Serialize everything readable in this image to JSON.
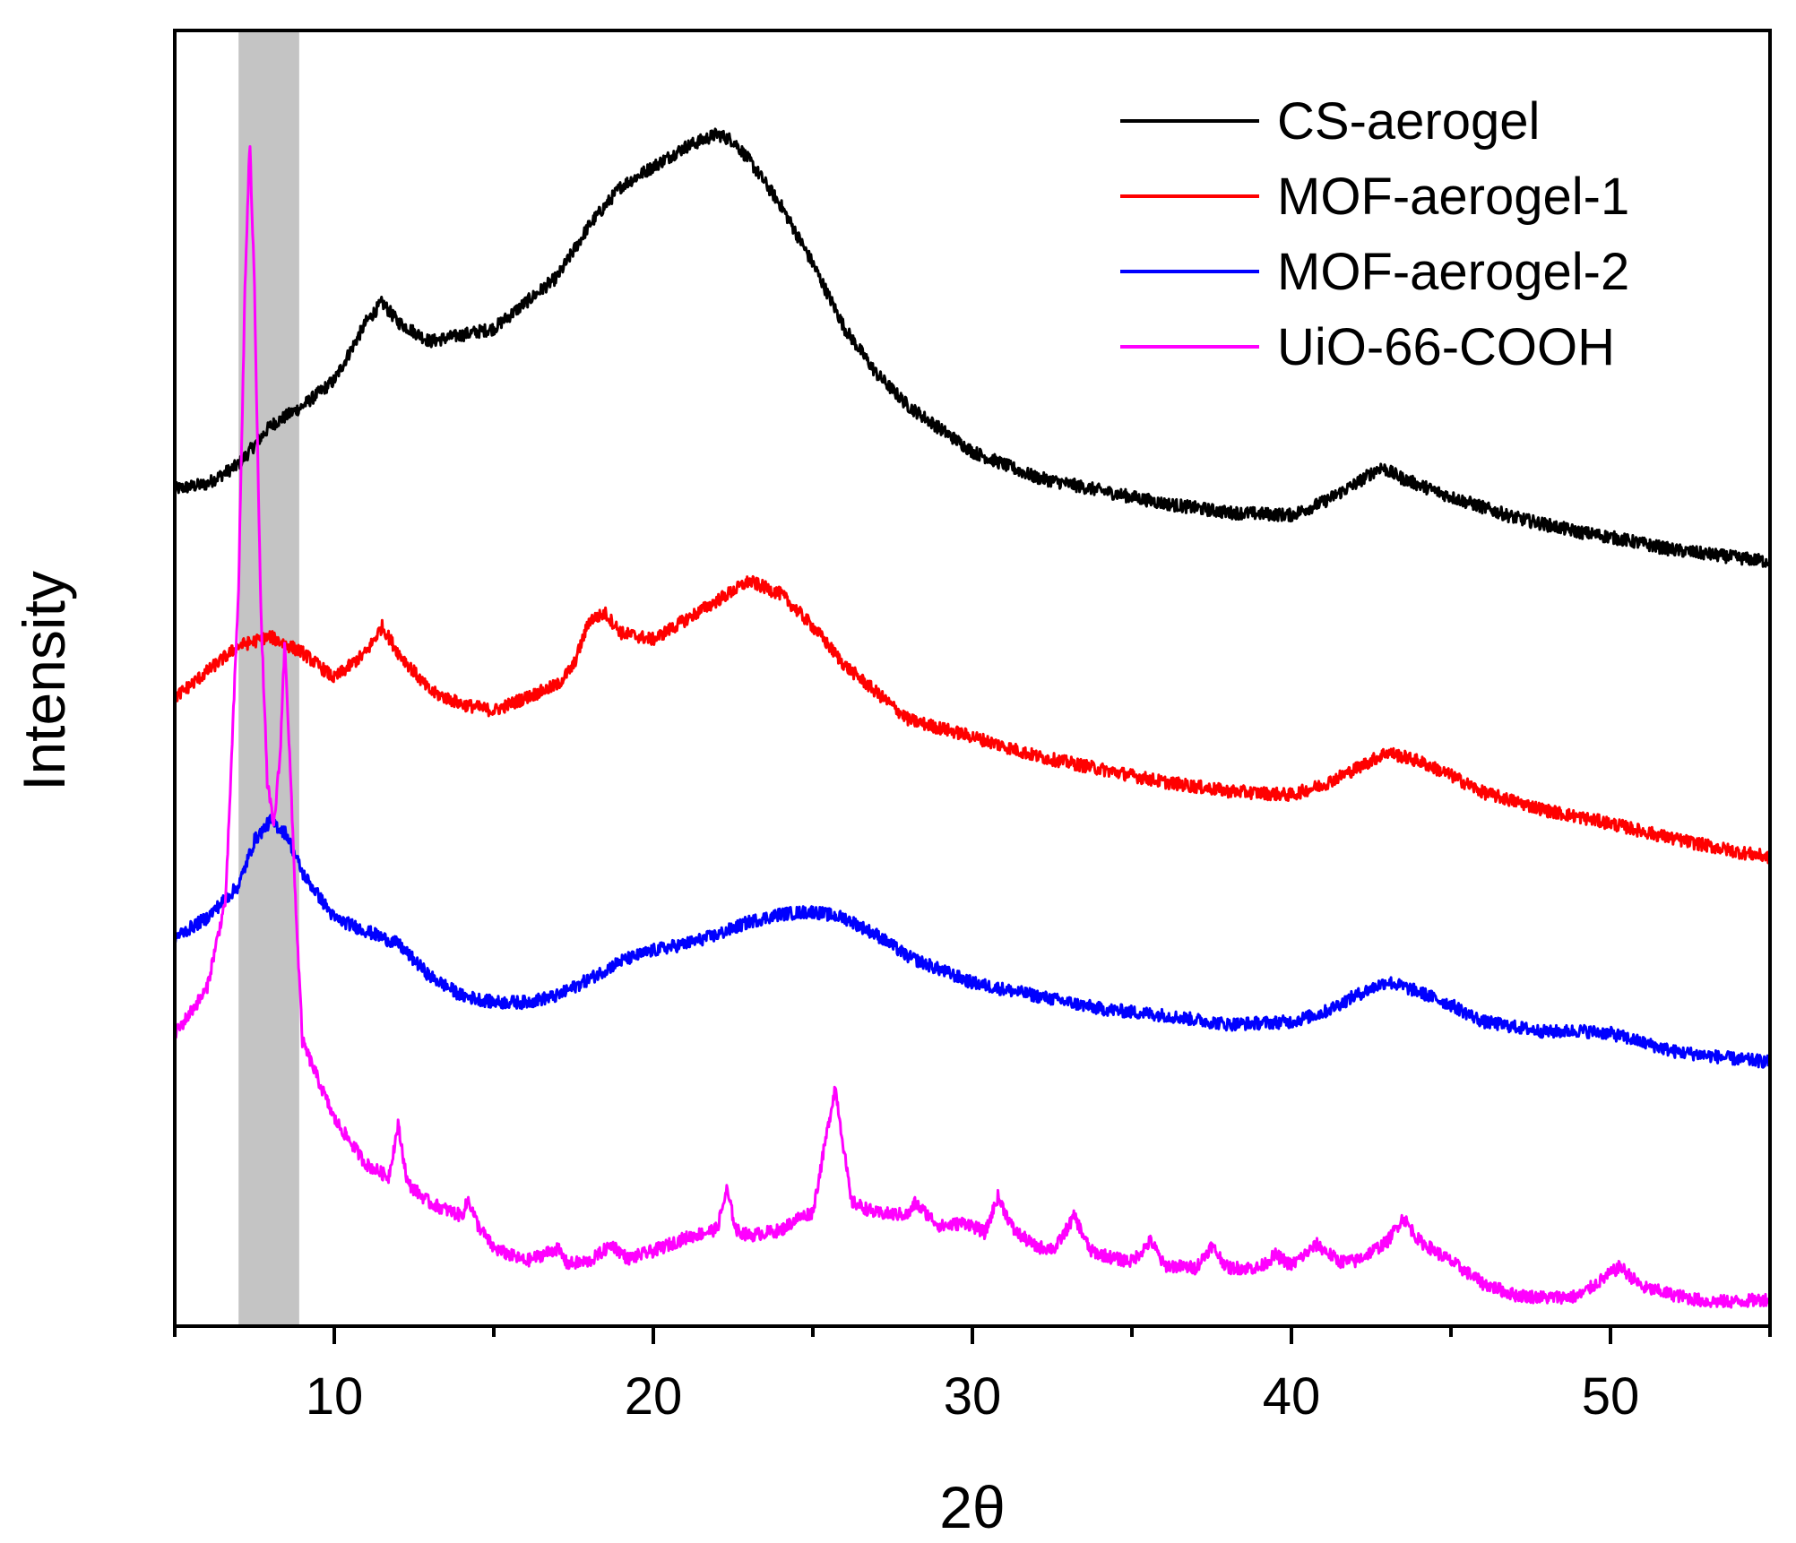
{
  "chart_data": {
    "type": "line",
    "title": "",
    "xlabel": "2θ",
    "ylabel": "Intensity",
    "xlim": [
      5,
      55
    ],
    "xticks": [
      10,
      20,
      30,
      40,
      50
    ],
    "xticks_minor": [
      5,
      15,
      25,
      35,
      45,
      55
    ],
    "y_ticks_shown": false,
    "ylim": [
      0,
      100
    ],
    "grid": false,
    "legend_position": "top-right",
    "highlight_band": {
      "x_range": [
        7.0,
        8.9
      ],
      "color": "#c4c4c4"
    },
    "series": [
      {
        "name": "CS-aerogel",
        "color": "#000000",
        "points": [
          [
            5,
            64.6
          ],
          [
            6,
            65
          ],
          [
            7,
            66.5
          ],
          [
            8,
            69.5
          ],
          [
            9,
            71
          ],
          [
            10,
            73
          ],
          [
            11,
            77.5
          ],
          [
            11.5,
            79
          ],
          [
            12,
            77.5
          ],
          [
            13,
            76
          ],
          [
            14,
            76.5
          ],
          [
            15,
            77
          ],
          [
            16,
            79
          ],
          [
            17,
            81
          ],
          [
            18,
            85
          ],
          [
            19,
            88
          ],
          [
            20,
            89.5
          ],
          [
            21,
            91
          ],
          [
            22,
            92
          ],
          [
            22.5,
            91.5
          ],
          [
            23,
            90
          ],
          [
            24,
            86.5
          ],
          [
            25,
            82
          ],
          [
            26,
            77
          ],
          [
            27,
            73.5
          ],
          [
            28,
            71
          ],
          [
            30,
            67.5
          ],
          [
            32,
            65.5
          ],
          [
            34,
            64.5
          ],
          [
            36,
            63.5
          ],
          [
            38,
            62.8
          ],
          [
            40,
            62.6
          ],
          [
            41,
            63.6
          ],
          [
            42,
            65
          ],
          [
            42.8,
            66.3
          ],
          [
            43.5,
            65.4
          ],
          [
            45,
            64
          ],
          [
            47,
            62.4
          ],
          [
            49,
            61.3
          ],
          [
            50,
            60.9
          ],
          [
            52,
            59.9
          ],
          [
            54,
            59.3
          ],
          [
            55,
            59
          ]
        ]
      },
      {
        "name": "MOF-aerogel-1",
        "color": "#ff0000",
        "points": [
          [
            5,
            48.5
          ],
          [
            6,
            50.5
          ],
          [
            7,
            52.5
          ],
          [
            8,
            53.2
          ],
          [
            9,
            52
          ],
          [
            10,
            50
          ],
          [
            11,
            52
          ],
          [
            11.5,
            54
          ],
          [
            12,
            52
          ],
          [
            13,
            49
          ],
          [
            14,
            48
          ],
          [
            15,
            47.5
          ],
          [
            16,
            48.5
          ],
          [
            17,
            49.5
          ],
          [
            17.5,
            51
          ],
          [
            18,
            54.5
          ],
          [
            18.5,
            55
          ],
          [
            19,
            53.5
          ],
          [
            20,
            53
          ],
          [
            21,
            54.5
          ],
          [
            22,
            56
          ],
          [
            23,
            57.5
          ],
          [
            24,
            56.5
          ],
          [
            25,
            54
          ],
          [
            26,
            51
          ],
          [
            28,
            46.8
          ],
          [
            30,
            45.5
          ],
          [
            32,
            44
          ],
          [
            34,
            43
          ],
          [
            36,
            42
          ],
          [
            38,
            41.3
          ],
          [
            40,
            41
          ],
          [
            41,
            41.8
          ],
          [
            42,
            43
          ],
          [
            43,
            44.3
          ],
          [
            44,
            43.6
          ],
          [
            45,
            42.5
          ],
          [
            46,
            41.2
          ],
          [
            48,
            39.8
          ],
          [
            50,
            38.8
          ],
          [
            52,
            37.6
          ],
          [
            54,
            36.6
          ],
          [
            55,
            36.2
          ]
        ]
      },
      {
        "name": "MOF-aerogel-2",
        "color": "#0000ff",
        "points": [
          [
            5,
            30
          ],
          [
            6,
            31.5
          ],
          [
            7,
            34
          ],
          [
            7.5,
            37.5
          ],
          [
            8,
            39
          ],
          [
            8.5,
            38
          ],
          [
            9,
            35
          ],
          [
            10,
            31.5
          ],
          [
            11,
            30.5
          ],
          [
            12,
            29.5
          ],
          [
            13,
            27
          ],
          [
            14,
            25.5
          ],
          [
            15,
            25
          ],
          [
            16,
            25
          ],
          [
            17,
            25.5
          ],
          [
            18,
            26.8
          ],
          [
            19,
            28.2
          ],
          [
            20,
            29
          ],
          [
            21,
            29.5
          ],
          [
            22,
            30.2
          ],
          [
            23,
            31.2
          ],
          [
            24,
            31.8
          ],
          [
            25,
            32
          ],
          [
            26,
            31.5
          ],
          [
            27,
            30.2
          ],
          [
            28,
            28.5
          ],
          [
            30,
            26.5
          ],
          [
            32,
            25.5
          ],
          [
            34,
            24.5
          ],
          [
            36,
            24
          ],
          [
            38,
            23.3
          ],
          [
            40,
            23.5
          ],
          [
            41,
            24.2
          ],
          [
            42,
            25.5
          ],
          [
            43,
            26.6
          ],
          [
            44,
            25.8
          ],
          [
            45,
            24.8
          ],
          [
            46,
            23.5
          ],
          [
            48,
            22.7
          ],
          [
            49,
            22.8
          ],
          [
            50,
            22.6
          ],
          [
            52,
            21.2
          ],
          [
            54,
            20.6
          ],
          [
            55,
            20.4
          ]
        ]
      },
      {
        "name": "UiO-66-COOH",
        "color": "#ff00ff",
        "points": [
          [
            5,
            22.5
          ],
          [
            6,
            26
          ],
          [
            6.6,
            33
          ],
          [
            7,
            57
          ],
          [
            7.2,
            80
          ],
          [
            7.35,
            91.5
          ],
          [
            7.5,
            80
          ],
          [
            7.7,
            55
          ],
          [
            7.9,
            42
          ],
          [
            8.1,
            38.5
          ],
          [
            8.3,
            44
          ],
          [
            8.45,
            53
          ],
          [
            8.6,
            44
          ],
          [
            8.8,
            32
          ],
          [
            9,
            22
          ],
          [
            10,
            16
          ],
          [
            11,
            12.5
          ],
          [
            11.7,
            11.5
          ],
          [
            12,
            15.5
          ],
          [
            12.3,
            11
          ],
          [
            13,
            9.5
          ],
          [
            14,
            8.5
          ],
          [
            14.2,
            9.8
          ],
          [
            14.5,
            7.8
          ],
          [
            15,
            6
          ],
          [
            16,
            5
          ],
          [
            17,
            6
          ],
          [
            17.3,
            4.8
          ],
          [
            18,
            5
          ],
          [
            18.7,
            6.3
          ],
          [
            19.2,
            5.2
          ],
          [
            20,
            5.8
          ],
          [
            21,
            6.8
          ],
          [
            22,
            7.5
          ],
          [
            22.3,
            10.5
          ],
          [
            22.6,
            7.4
          ],
          [
            23,
            7
          ],
          [
            24,
            7.4
          ],
          [
            24.5,
            8.3
          ],
          [
            25,
            8.8
          ],
          [
            25.7,
            18.5
          ],
          [
            26.2,
            9.6
          ],
          [
            27,
            8.7
          ],
          [
            28,
            8.6
          ],
          [
            28.2,
            9.5
          ],
          [
            29,
            7.7
          ],
          [
            29.8,
            8
          ],
          [
            30.4,
            7.2
          ],
          [
            30.8,
            10
          ],
          [
            31.3,
            7.4
          ],
          [
            32,
            6.1
          ],
          [
            32.6,
            6
          ],
          [
            33.2,
            8.5
          ],
          [
            33.7,
            5.8
          ],
          [
            34.5,
            5.2
          ],
          [
            35,
            5
          ],
          [
            35.6,
            6.6
          ],
          [
            36,
            4.7
          ],
          [
            37,
            4.5
          ],
          [
            37.5,
            6.2
          ],
          [
            38,
            4.5
          ],
          [
            39,
            4.5
          ],
          [
            39.5,
            5.5
          ],
          [
            40,
            4.7
          ],
          [
            40.8,
            6.3
          ],
          [
            41.5,
            5
          ],
          [
            42,
            5
          ],
          [
            43,
            6.5
          ],
          [
            43.5,
            8.4
          ],
          [
            44,
            6.6
          ],
          [
            45,
            5
          ],
          [
            46,
            3.3
          ],
          [
            47,
            2.4
          ],
          [
            48,
            2.2
          ],
          [
            49,
            2.3
          ],
          [
            50.3,
            4.6
          ],
          [
            51,
            3
          ],
          [
            52,
            2.4
          ],
          [
            53,
            1.9
          ],
          [
            54,
            1.9
          ],
          [
            55,
            2.1
          ]
        ]
      }
    ]
  }
}
